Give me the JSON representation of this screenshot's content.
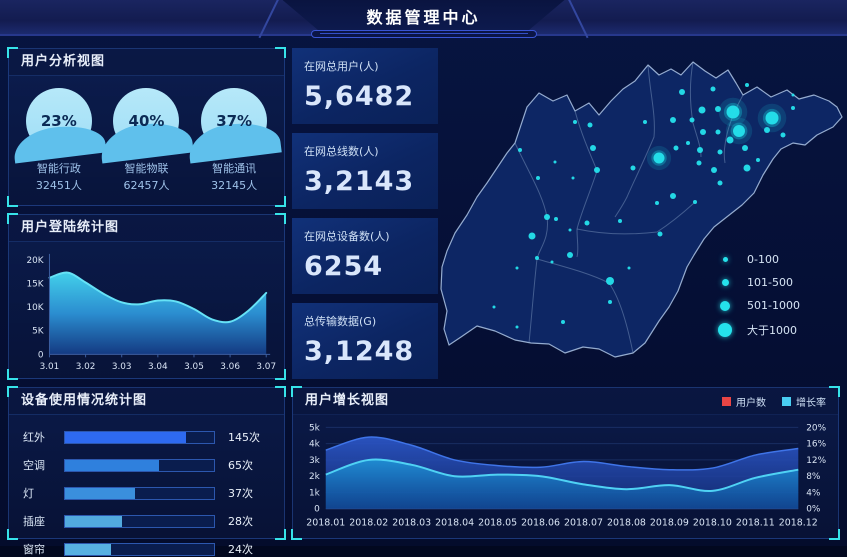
{
  "header": {
    "title": "数据管理中心"
  },
  "panels": {
    "user_analysis": {
      "title": "用户分析视图"
    },
    "login_stats": {
      "title": "用户登陆统计图"
    },
    "device_usage": {
      "title": "设备使用情况统计图"
    },
    "growth": {
      "title": "用户增长视图"
    }
  },
  "kpis": [
    {
      "label": "在网总用户(人)",
      "value": "5,6482"
    },
    {
      "label": "在网总线数(人)",
      "value": "3,2143"
    },
    {
      "label": "在网总设备数(人)",
      "value": "6254"
    },
    {
      "label": "总传输数据(G)",
      "value": "3,1248"
    }
  ],
  "map": {
    "dot_color": "#25e2ec",
    "legend": [
      {
        "label": "0-100",
        "size": 5
      },
      {
        "label": "101-500",
        "size": 7
      },
      {
        "label": "501-1000",
        "size": 10
      },
      {
        "label": "大于1000",
        "size": 14
      }
    ],
    "points": [
      [
        296,
        67,
        6.5,
        1
      ],
      [
        302,
        86,
        6,
        1
      ],
      [
        335,
        73,
        6.5,
        1
      ],
      [
        222,
        113,
        5.5,
        1
      ],
      [
        245,
        47,
        3
      ],
      [
        276,
        44,
        2.5
      ],
      [
        310,
        40,
        2
      ],
      [
        265,
        65,
        3.5
      ],
      [
        281,
        64,
        3
      ],
      [
        255,
        75,
        2.5
      ],
      [
        236,
        75,
        3
      ],
      [
        208,
        77,
        2
      ],
      [
        266,
        87,
        3
      ],
      [
        281,
        87,
        2.5
      ],
      [
        293,
        95,
        3.5
      ],
      [
        308,
        103,
        3
      ],
      [
        283,
        107,
        2.5
      ],
      [
        263,
        105,
        3
      ],
      [
        251,
        98,
        2
      ],
      [
        239,
        103,
        2.5
      ],
      [
        262,
        118,
        2.5
      ],
      [
        277,
        125,
        3
      ],
      [
        310,
        123,
        3.5
      ],
      [
        283,
        138,
        2.5
      ],
      [
        236,
        151,
        3
      ],
      [
        196,
        123,
        2.5
      ],
      [
        330,
        85,
        3
      ],
      [
        356,
        63,
        2
      ],
      [
        356,
        50,
        1.5
      ],
      [
        346,
        90,
        2.5
      ],
      [
        321,
        115,
        2
      ],
      [
        153,
        80,
        2.5
      ],
      [
        138,
        77,
        2
      ],
      [
        118,
        117,
        1.5
      ],
      [
        156,
        103,
        3
      ],
      [
        83,
        105,
        2
      ],
      [
        160,
        125,
        3
      ],
      [
        136,
        133,
        1.5
      ],
      [
        101,
        133,
        2
      ],
      [
        110,
        172,
        3
      ],
      [
        119,
        174,
        2
      ],
      [
        95,
        191,
        3.5
      ],
      [
        133,
        185,
        1.5
      ],
      [
        100,
        213,
        2
      ],
      [
        173,
        236,
        4
      ],
      [
        183,
        176,
        2
      ],
      [
        150,
        178,
        2.5
      ],
      [
        126,
        277,
        2
      ],
      [
        57,
        262,
        1.5
      ],
      [
        80,
        223,
        1.5
      ],
      [
        115,
        217,
        1.5
      ],
      [
        192,
        223,
        1.5
      ],
      [
        220,
        158,
        2
      ],
      [
        223,
        189,
        2.5
      ],
      [
        80,
        282,
        1.5
      ],
      [
        133,
        210,
        3
      ],
      [
        173,
        257,
        2
      ],
      [
        258,
        157,
        2
      ]
    ]
  },
  "chart_data": {
    "liquid_gauges": {
      "type": "gauge",
      "items": [
        {
          "percent": 23,
          "percent_label": "23%",
          "label": "智能行政",
          "count": "32451人"
        },
        {
          "percent": 40,
          "percent_label": "40%",
          "label": "智能物联",
          "count": "62457人"
        },
        {
          "percent": 37,
          "percent_label": "37%",
          "label": "智能通讯",
          "count": "32145人"
        }
      ],
      "fill_top": "#a6e1f7",
      "fill_wave": "#5fc0ec",
      "text_color": "#0b2a55"
    },
    "login_chart": {
      "type": "area",
      "title": "用户登陆统计图",
      "x_labels": [
        "3.01",
        "3.02",
        "3.03",
        "3.04",
        "3.05",
        "3.06",
        "3.07"
      ],
      "y_ticks": [
        "0",
        "5K",
        "10K",
        "15K",
        "20K"
      ],
      "ylim": [
        0,
        20000
      ],
      "values": [
        16200,
        17300,
        15200,
        12800,
        11000,
        10600,
        11400,
        11200,
        9600,
        7400,
        6900,
        9200,
        13000
      ],
      "line_color": "#66e2f6"
    },
    "device_chart": {
      "type": "bar",
      "unit": "次",
      "categories": [
        "红外",
        "空调",
        "灯",
        "插座",
        "窗帘"
      ],
      "values": [
        145,
        65,
        37,
        28,
        24
      ],
      "value_labels": [
        "145次",
        "65次",
        "37次",
        "28次",
        "24次"
      ],
      "fill_pct": [
        81,
        63,
        47,
        38,
        31
      ],
      "bar_colors": [
        "#2e6af0",
        "#2f80dd",
        "#3a8fdd",
        "#52aade",
        "#57b1e2"
      ]
    },
    "growth_chart": {
      "type": "area",
      "title": "用户增长视图",
      "categories": [
        "2018.01",
        "2018.02",
        "2018.03",
        "2018.04",
        "2018.05",
        "2018.06",
        "2018.07",
        "2018.08",
        "2018.09",
        "2018.10",
        "2018.11",
        "2018.12"
      ],
      "left_ticks": [
        "0",
        "1k",
        "2k",
        "3k",
        "4k",
        "5k"
      ],
      "right_ticks": [
        "0%",
        "4%",
        "8%",
        "12%",
        "16%",
        "20%"
      ],
      "ylim_left": [
        0,
        5000
      ],
      "grid": true,
      "legend_position": "top-right",
      "series": [
        {
          "name": "用户数",
          "legend_color": "#e84545",
          "line_color": "#3f74e8",
          "values": [
            3600,
            4400,
            3900,
            3000,
            2650,
            2550,
            2900,
            2600,
            2400,
            2500,
            3300,
            3700
          ]
        },
        {
          "name": "增长率",
          "legend_color": "#49cdf2",
          "line_color": "#4fd2f4",
          "values": [
            2100,
            3000,
            2700,
            2000,
            2100,
            2000,
            1500,
            1200,
            1450,
            1100,
            1900,
            2400
          ]
        }
      ]
    }
  },
  "colors": {
    "accent_cyan": "#37e3e9",
    "panel_border": "#2c56aa",
    "bg": "#050f35"
  }
}
